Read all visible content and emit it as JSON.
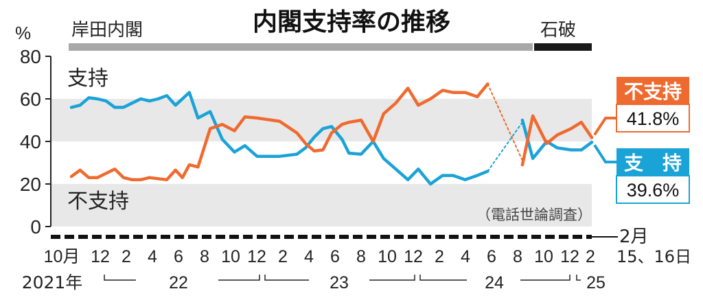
{
  "chart_data": {
    "type": "line",
    "title": "内閣支持率の推移",
    "source_note": "（電話世論調査）",
    "y_unit": "%",
    "ylim": [
      0,
      80
    ],
    "y_ticks": [
      "0",
      "20",
      "40",
      "60",
      "80"
    ],
    "grid_bands": true,
    "eras": [
      {
        "name": "岸田内閣",
        "color": "#a8a8a8"
      },
      {
        "name": "石破",
        "color": "#1a1a1a"
      }
    ],
    "x_month_labels": [
      "10月",
      "12",
      "2",
      "4",
      "6",
      "8",
      "10",
      "12",
      "2",
      "4",
      "6",
      "8",
      "10",
      "12",
      "2",
      "4",
      "6",
      "8",
      "10",
      "12",
      "2"
    ],
    "x_end_label_line1": "2月",
    "x_end_label_line2": "15、16日",
    "x_year_labels": [
      "2021年",
      "22",
      "23",
      "24",
      "25"
    ],
    "series": [
      {
        "name": "支持",
        "legend_label": "支　持",
        "color": "#1aa3d6",
        "latest_label": "39.6%",
        "segments": [
          {
            "x": [
              0,
              0.5,
              1,
              1.5,
              2,
              2.5,
              3,
              3.5,
              4,
              4.5,
              5,
              5.5,
              6,
              6.4,
              6.8,
              7.3,
              8,
              8.7,
              9.4,
              10,
              10.7,
              12,
              13,
              13.5,
              14,
              14.5,
              15,
              15.6,
              16,
              16.7,
              17.4,
              18,
              18.7,
              19.4,
              20,
              20.7,
              21.4,
              22,
              22.7,
              23.4,
              24
            ],
            "y": [
              56,
              57,
              60.5,
              60,
              59,
              56,
              56,
              58,
              60,
              59,
              60,
              61.5,
              57,
              60,
              63,
              51,
              54,
              41,
              35,
              38,
              33,
              33,
              34,
              37,
              42,
              46,
              47,
              41,
              34.5,
              34,
              40,
              32,
              27,
              22,
              27,
              20,
              24,
              24,
              22,
              24,
              26
            ]
          },
          {
            "x": [
              24,
              26
            ],
            "y": [
              26,
              49
            ],
            "dashed": true
          },
          {
            "x": [
              26,
              26.6,
              27.4,
              28,
              28.8,
              29.4,
              30
            ],
            "y": [
              50,
              32,
              40,
              37,
              36,
              36,
              39.6
            ]
          }
        ]
      },
      {
        "name": "不支持",
        "legend_label": "不支持",
        "color": "#ef6a2f",
        "latest_label": "41.8%",
        "segments": [
          {
            "x": [
              0,
              0.5,
              1,
              1.5,
              2,
              2.5,
              3,
              3.5,
              4,
              4.5,
              5,
              5.5,
              6,
              6.4,
              6.8,
              7.3,
              8,
              8.7,
              9.4,
              10,
              10.7,
              12,
              13,
              13.5,
              14,
              14.5,
              15,
              15.6,
              16,
              16.7,
              17.4,
              18,
              18.7,
              19.4,
              20,
              20.7,
              21.4,
              22,
              22.7,
              23.4,
              24
            ],
            "y": [
              23.5,
              26.5,
              23,
              23,
              25,
              27,
              23,
              22,
              22,
              23,
              22.5,
              22,
              26.5,
              23,
              29,
              28,
              46,
              48,
              45,
              51.5,
              51,
              49.5,
              44,
              39,
              35.5,
              36,
              44,
              48,
              49,
              50,
              40,
              53,
              58,
              65,
              57,
              60,
              64,
              63,
              63,
              61,
              67
            ]
          },
          {
            "x": [
              24,
              26
            ],
            "y": [
              67,
              31
            ],
            "dashed": true
          },
          {
            "x": [
              26,
              26.6,
              27.4,
              28,
              28.8,
              29.4,
              30
            ],
            "y": [
              29,
              52,
              39,
              43,
              46,
              49,
              41.8
            ]
          }
        ]
      }
    ]
  }
}
